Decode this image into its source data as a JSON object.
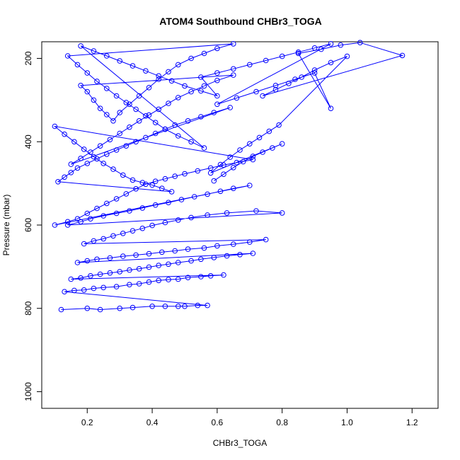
{
  "chart_data": {
    "type": "line",
    "title": "ATOM4 Southbound CHBr3_TOGA",
    "xlabel": "CHBr3_TOGA",
    "ylabel": "Pressure (mbar)",
    "xlim": [
      0.06,
      1.28
    ],
    "ylim": [
      1040,
      160
    ],
    "y_reversed": true,
    "x_ticks": [
      0.2,
      0.4,
      0.6,
      0.8,
      1.0,
      1.2
    ],
    "x_tick_labels": [
      "0.2",
      "0.4",
      "0.6",
      "0.8",
      "1.0",
      "1.2"
    ],
    "y_ticks": [
      200,
      400,
      600,
      800,
      1000
    ],
    "y_tick_labels": [
      "200",
      "400",
      "600",
      "800",
      "1000"
    ],
    "grid": false,
    "legend": "none",
    "series": [
      {
        "color": "#0000ff",
        "marker": "open-circle",
        "points": [
          [
            0.12,
            803
          ],
          [
            0.2,
            800
          ],
          [
            0.24,
            803
          ],
          [
            0.3,
            800
          ],
          [
            0.34,
            798
          ],
          [
            0.4,
            795
          ],
          [
            0.44,
            795
          ],
          [
            0.48,
            795
          ],
          [
            0.5,
            795
          ],
          [
            0.54,
            793
          ],
          [
            0.57,
            793
          ],
          [
            0.13,
            760
          ],
          [
            0.16,
            757
          ],
          [
            0.19,
            756
          ],
          [
            0.22,
            752
          ],
          [
            0.25,
            750
          ],
          [
            0.29,
            748
          ],
          [
            0.33,
            743
          ],
          [
            0.36,
            741
          ],
          [
            0.39,
            737
          ],
          [
            0.42,
            733
          ],
          [
            0.45,
            731
          ],
          [
            0.48,
            730
          ],
          [
            0.51,
            726
          ],
          [
            0.55,
            724
          ],
          [
            0.58,
            722
          ],
          [
            0.62,
            720
          ],
          [
            0.15,
            730
          ],
          [
            0.18,
            727
          ],
          [
            0.21,
            722
          ],
          [
            0.24,
            718
          ],
          [
            0.27,
            715
          ],
          [
            0.3,
            712
          ],
          [
            0.33,
            708
          ],
          [
            0.36,
            705
          ],
          [
            0.39,
            701
          ],
          [
            0.42,
            697
          ],
          [
            0.45,
            694
          ],
          [
            0.48,
            690
          ],
          [
            0.52,
            686
          ],
          [
            0.55,
            682
          ],
          [
            0.59,
            678
          ],
          [
            0.63,
            674
          ],
          [
            0.67,
            671
          ],
          [
            0.71,
            668
          ],
          [
            0.17,
            690
          ],
          [
            0.2,
            686
          ],
          [
            0.23,
            682
          ],
          [
            0.27,
            679
          ],
          [
            0.31,
            675
          ],
          [
            0.35,
            672
          ],
          [
            0.39,
            669
          ],
          [
            0.43,
            665
          ],
          [
            0.47,
            662
          ],
          [
            0.51,
            658
          ],
          [
            0.56,
            655
          ],
          [
            0.6,
            650
          ],
          [
            0.65,
            646
          ],
          [
            0.7,
            641
          ],
          [
            0.75,
            635
          ],
          [
            0.19,
            645
          ],
          [
            0.22,
            638
          ],
          [
            0.25,
            633
          ],
          [
            0.28,
            626
          ],
          [
            0.31,
            620
          ],
          [
            0.34,
            614
          ],
          [
            0.37,
            608
          ],
          [
            0.4,
            601
          ],
          [
            0.44,
            594
          ],
          [
            0.48,
            588
          ],
          [
            0.52,
            582
          ],
          [
            0.57,
            576
          ],
          [
            0.63,
            571
          ],
          [
            0.72,
            566
          ],
          [
            0.8,
            571
          ],
          [
            0.14,
            600
          ],
          [
            0.18,
            592
          ],
          [
            0.21,
            585
          ],
          [
            0.25,
            578
          ],
          [
            0.29,
            572
          ],
          [
            0.33,
            566
          ],
          [
            0.37,
            559
          ],
          [
            0.41,
            552
          ],
          [
            0.45,
            546
          ],
          [
            0.49,
            539
          ],
          [
            0.53,
            532
          ],
          [
            0.57,
            526
          ],
          [
            0.61,
            519
          ],
          [
            0.65,
            512
          ],
          [
            0.7,
            505
          ],
          [
            0.1,
            600
          ],
          [
            0.14,
            592
          ],
          [
            0.17,
            585
          ],
          [
            0.2,
            572
          ],
          [
            0.23,
            560
          ],
          [
            0.26,
            548
          ],
          [
            0.29,
            537
          ],
          [
            0.32,
            525
          ],
          [
            0.35,
            513
          ],
          [
            0.38,
            502
          ],
          [
            0.41,
            495
          ],
          [
            0.44,
            489
          ],
          [
            0.47,
            483
          ],
          [
            0.5,
            477
          ],
          [
            0.54,
            470
          ],
          [
            0.58,
            463
          ],
          [
            0.62,
            456
          ],
          [
            0.66,
            450
          ],
          [
            0.71,
            443
          ],
          [
            0.1,
            363
          ],
          [
            0.13,
            382
          ],
          [
            0.16,
            400
          ],
          [
            0.19,
            418
          ],
          [
            0.22,
            436
          ],
          [
            0.25,
            452
          ],
          [
            0.28,
            466
          ],
          [
            0.31,
            480
          ],
          [
            0.34,
            492
          ],
          [
            0.37,
            498
          ],
          [
            0.4,
            504
          ],
          [
            0.43,
            512
          ],
          [
            0.46,
            520
          ],
          [
            0.11,
            496
          ],
          [
            0.13,
            485
          ],
          [
            0.15,
            474
          ],
          [
            0.17,
            463
          ],
          [
            0.2,
            452
          ],
          [
            0.23,
            441
          ],
          [
            0.26,
            430
          ],
          [
            0.29,
            420
          ],
          [
            0.32,
            410
          ],
          [
            0.35,
            400
          ],
          [
            0.38,
            390
          ],
          [
            0.41,
            380
          ],
          [
            0.44,
            370
          ],
          [
            0.47,
            360
          ],
          [
            0.51,
            350
          ],
          [
            0.55,
            340
          ],
          [
            0.59,
            330
          ],
          [
            0.64,
            318
          ],
          [
            0.15,
            454
          ],
          [
            0.18,
            440
          ],
          [
            0.21,
            425
          ],
          [
            0.24,
            410
          ],
          [
            0.27,
            395
          ],
          [
            0.3,
            380
          ],
          [
            0.33,
            365
          ],
          [
            0.36,
            350
          ],
          [
            0.39,
            336
          ],
          [
            0.42,
            322
          ],
          [
            0.45,
            308
          ],
          [
            0.48,
            294
          ],
          [
            0.52,
            280
          ],
          [
            0.56,
            266
          ],
          [
            0.6,
            253
          ],
          [
            0.65,
            240
          ],
          [
            0.18,
            265
          ],
          [
            0.2,
            280
          ],
          [
            0.22,
            300
          ],
          [
            0.24,
            320
          ],
          [
            0.26,
            335
          ],
          [
            0.28,
            350
          ],
          [
            0.3,
            330
          ],
          [
            0.33,
            310
          ],
          [
            0.36,
            290
          ],
          [
            0.39,
            270
          ],
          [
            0.42,
            250
          ],
          [
            0.45,
            232
          ],
          [
            0.48,
            215
          ],
          [
            0.52,
            200
          ],
          [
            0.56,
            188
          ],
          [
            0.6,
            176
          ],
          [
            0.65,
            165
          ],
          [
            0.14,
            194
          ],
          [
            0.17,
            215
          ],
          [
            0.2,
            235
          ],
          [
            0.23,
            255
          ],
          [
            0.26,
            272
          ],
          [
            0.29,
            290
          ],
          [
            0.32,
            306
          ],
          [
            0.35,
            322
          ],
          [
            0.38,
            338
          ],
          [
            0.41,
            354
          ],
          [
            0.44,
            370
          ],
          [
            0.48,
            386
          ],
          [
            0.52,
            400
          ],
          [
            0.56,
            415
          ],
          [
            0.18,
            170
          ],
          [
            0.22,
            182
          ],
          [
            0.26,
            194
          ],
          [
            0.3,
            206
          ],
          [
            0.34,
            218
          ],
          [
            0.38,
            230
          ],
          [
            0.42,
            242
          ],
          [
            0.46,
            254
          ],
          [
            0.5,
            266
          ],
          [
            0.55,
            278
          ],
          [
            0.6,
            290
          ],
          [
            0.55,
            245
          ],
          [
            0.6,
            235
          ],
          [
            0.65,
            225
          ],
          [
            0.7,
            215
          ],
          [
            0.75,
            205
          ],
          [
            0.8,
            195
          ],
          [
            0.85,
            185
          ],
          [
            0.9,
            175
          ],
          [
            0.95,
            165
          ],
          [
            0.6,
            310
          ],
          [
            0.66,
            295
          ],
          [
            0.72,
            280
          ],
          [
            0.78,
            265
          ],
          [
            0.84,
            250
          ],
          [
            0.9,
            235
          ],
          [
            0.95,
            320
          ],
          [
            0.85,
            188
          ],
          [
            0.92,
            178
          ],
          [
            0.98,
            168
          ],
          [
            1.04,
            162
          ],
          [
            1.17,
            193
          ],
          [
            0.74,
            290
          ],
          [
            0.78,
            275
          ],
          [
            0.82,
            260
          ],
          [
            0.86,
            245
          ],
          [
            0.9,
            228
          ],
          [
            0.95,
            210
          ],
          [
            1.0,
            195
          ],
          [
            0.79,
            360
          ],
          [
            0.76,
            375
          ],
          [
            0.73,
            390
          ],
          [
            0.7,
            405
          ],
          [
            0.67,
            420
          ],
          [
            0.64,
            437
          ],
          [
            0.61,
            455
          ],
          [
            0.58,
            475
          ],
          [
            0.8,
            405
          ],
          [
            0.77,
            415
          ],
          [
            0.74,
            425
          ],
          [
            0.71,
            435
          ],
          [
            0.68,
            448
          ],
          [
            0.65,
            462
          ],
          [
            0.62,
            478
          ],
          [
            0.59,
            494
          ]
        ]
      }
    ]
  }
}
